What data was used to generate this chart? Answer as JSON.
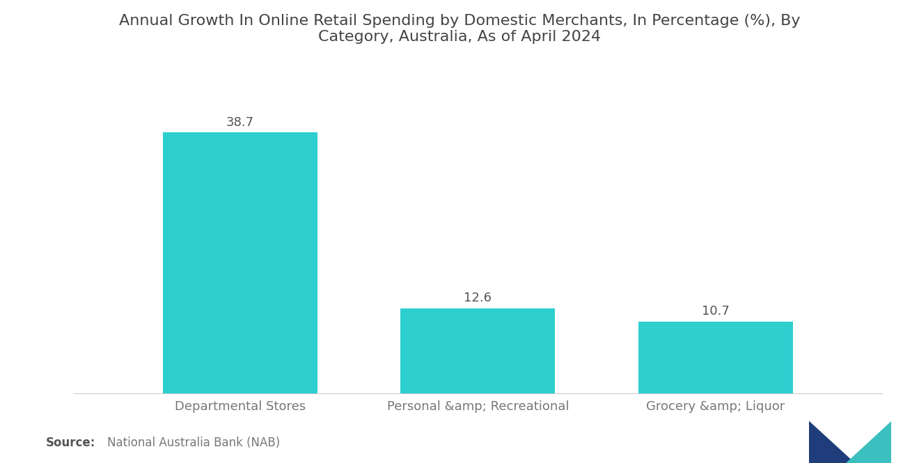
{
  "title": "Annual Growth In Online Retail Spending by Domestic Merchants, In Percentage (%), By\nCategory, Australia, As of April 2024",
  "categories": [
    "Departmental Stores",
    "Personal &amp; Recreational",
    "Grocery &amp; Liquor"
  ],
  "values": [
    38.7,
    12.6,
    10.7
  ],
  "bar_color": "#2ECFCF",
  "background_color": "#ffffff",
  "value_labels": [
    "38.7",
    "12.6",
    "10.7"
  ],
  "source_bold": "Source:",
  "source_text": "  National Australia Bank (NAB)",
  "title_fontsize": 16,
  "label_fontsize": 13,
  "value_fontsize": 13,
  "source_fontsize": 12,
  "ylim": [
    0,
    46
  ],
  "bar_width": 0.65,
  "logo_colors": {
    "left_dark": "#2255a4",
    "right_teal": "#3bbfbf",
    "overlap": "#1a4a8a"
  }
}
